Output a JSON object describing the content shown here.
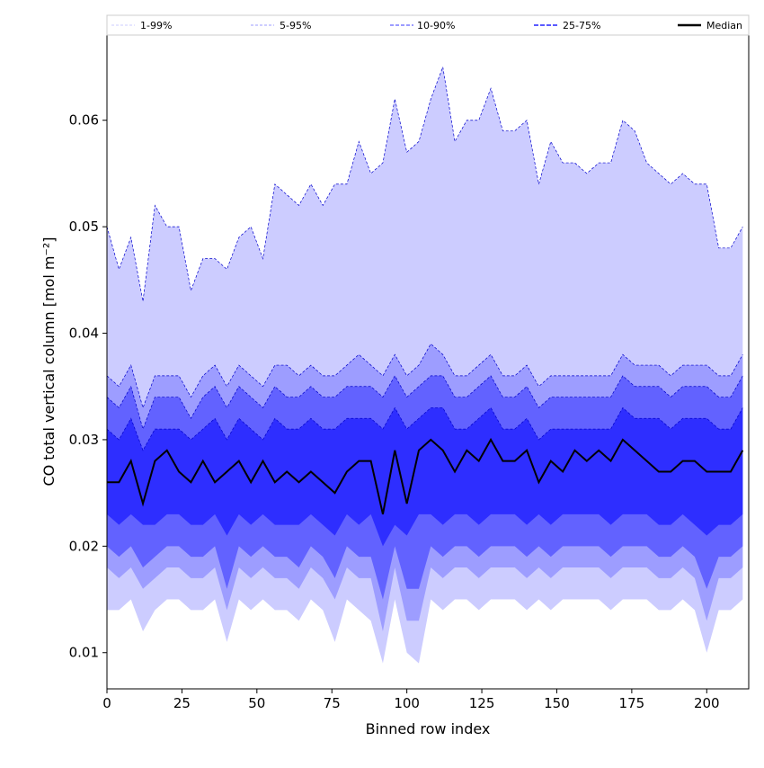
{
  "chart_data": {
    "type": "area",
    "title": "",
    "xlabel": "Binned row index",
    "ylabel": "CO total vertical column [mol m⁻²]",
    "xlim": [
      0,
      214
    ],
    "ylim": [
      0.0066,
      0.068
    ],
    "xticks": [
      0,
      25,
      50,
      75,
      100,
      125,
      150,
      175,
      200
    ],
    "yticks": [
      0.01,
      0.02,
      0.03,
      0.04,
      0.05,
      0.06
    ],
    "ytick_labels": [
      "0.01",
      "0.02",
      "0.03",
      "0.04",
      "0.05",
      "0.06"
    ],
    "legend_placement": "top (above plot)",
    "legend": [
      "1-99%",
      "5-95%",
      "10-90%",
      "25-75%",
      "Median"
    ],
    "colors": {
      "band_1_99": "#ccccff",
      "band_5_95": "#9d9dff",
      "band_10_90": "#6262ff",
      "band_25_75": "#2e2eff",
      "median": "#000000",
      "edge": "#0000cc"
    },
    "x": [
      0,
      4,
      8,
      12,
      16,
      20,
      24,
      28,
      32,
      36,
      40,
      44,
      48,
      52,
      56,
      60,
      64,
      68,
      72,
      76,
      80,
      84,
      88,
      92,
      96,
      100,
      104,
      108,
      112,
      116,
      120,
      124,
      128,
      132,
      136,
      140,
      144,
      148,
      152,
      156,
      160,
      164,
      168,
      172,
      176,
      180,
      184,
      188,
      192,
      196,
      200,
      204,
      208,
      212
    ],
    "series": [
      {
        "name": "p99",
        "values": [
          0.05,
          0.046,
          0.049,
          0.043,
          0.052,
          0.05,
          0.05,
          0.044,
          0.047,
          0.047,
          0.046,
          0.049,
          0.05,
          0.047,
          0.054,
          0.053,
          0.052,
          0.054,
          0.052,
          0.054,
          0.054,
          0.058,
          0.055,
          0.056,
          0.062,
          0.057,
          0.058,
          0.062,
          0.065,
          0.058,
          0.06,
          0.06,
          0.063,
          0.059,
          0.059,
          0.06,
          0.054,
          0.058,
          0.056,
          0.056,
          0.055,
          0.056,
          0.056,
          0.06,
          0.059,
          0.056,
          0.055,
          0.054,
          0.055,
          0.054,
          0.054,
          0.048,
          0.048,
          0.05
        ]
      },
      {
        "name": "p95",
        "values": [
          0.036,
          0.035,
          0.037,
          0.033,
          0.036,
          0.036,
          0.036,
          0.034,
          0.036,
          0.037,
          0.035,
          0.037,
          0.036,
          0.035,
          0.037,
          0.037,
          0.036,
          0.037,
          0.036,
          0.036,
          0.037,
          0.038,
          0.037,
          0.036,
          0.038,
          0.036,
          0.037,
          0.039,
          0.038,
          0.036,
          0.036,
          0.037,
          0.038,
          0.036,
          0.036,
          0.037,
          0.035,
          0.036,
          0.036,
          0.036,
          0.036,
          0.036,
          0.036,
          0.038,
          0.037,
          0.037,
          0.037,
          0.036,
          0.037,
          0.037,
          0.037,
          0.036,
          0.036,
          0.038
        ]
      },
      {
        "name": "p90",
        "values": [
          0.034,
          0.033,
          0.035,
          0.031,
          0.034,
          0.034,
          0.034,
          0.032,
          0.034,
          0.035,
          0.033,
          0.035,
          0.034,
          0.033,
          0.035,
          0.034,
          0.034,
          0.035,
          0.034,
          0.034,
          0.035,
          0.035,
          0.035,
          0.034,
          0.036,
          0.034,
          0.035,
          0.036,
          0.036,
          0.034,
          0.034,
          0.035,
          0.036,
          0.034,
          0.034,
          0.035,
          0.033,
          0.034,
          0.034,
          0.034,
          0.034,
          0.034,
          0.034,
          0.036,
          0.035,
          0.035,
          0.035,
          0.034,
          0.035,
          0.035,
          0.035,
          0.034,
          0.034,
          0.036
        ]
      },
      {
        "name": "p75",
        "values": [
          0.031,
          0.03,
          0.032,
          0.029,
          0.031,
          0.031,
          0.031,
          0.03,
          0.031,
          0.032,
          0.03,
          0.032,
          0.031,
          0.03,
          0.032,
          0.031,
          0.031,
          0.032,
          0.031,
          0.031,
          0.032,
          0.032,
          0.032,
          0.031,
          0.033,
          0.031,
          0.032,
          0.033,
          0.033,
          0.031,
          0.031,
          0.032,
          0.033,
          0.031,
          0.031,
          0.032,
          0.03,
          0.031,
          0.031,
          0.031,
          0.031,
          0.031,
          0.031,
          0.033,
          0.032,
          0.032,
          0.032,
          0.031,
          0.032,
          0.032,
          0.032,
          0.031,
          0.031,
          0.033
        ]
      },
      {
        "name": "Median",
        "values": [
          0.026,
          0.026,
          0.028,
          0.024,
          0.028,
          0.029,
          0.027,
          0.026,
          0.028,
          0.026,
          0.027,
          0.028,
          0.026,
          0.028,
          0.026,
          0.027,
          0.026,
          0.027,
          0.026,
          0.025,
          0.027,
          0.028,
          0.028,
          0.023,
          0.029,
          0.024,
          0.029,
          0.03,
          0.029,
          0.027,
          0.029,
          0.028,
          0.03,
          0.028,
          0.028,
          0.029,
          0.026,
          0.028,
          0.027,
          0.029,
          0.028,
          0.029,
          0.028,
          0.03,
          0.029,
          0.028,
          0.027,
          0.027,
          0.028,
          0.028,
          0.027,
          0.027,
          0.027,
          0.029
        ]
      },
      {
        "name": "p25",
        "values": [
          0.023,
          0.022,
          0.023,
          0.022,
          0.022,
          0.023,
          0.023,
          0.022,
          0.022,
          0.023,
          0.021,
          0.023,
          0.022,
          0.023,
          0.022,
          0.022,
          0.022,
          0.023,
          0.022,
          0.021,
          0.023,
          0.022,
          0.023,
          0.02,
          0.022,
          0.021,
          0.023,
          0.023,
          0.022,
          0.023,
          0.023,
          0.022,
          0.023,
          0.023,
          0.023,
          0.022,
          0.023,
          0.022,
          0.023,
          0.023,
          0.023,
          0.023,
          0.022,
          0.023,
          0.023,
          0.023,
          0.022,
          0.022,
          0.023,
          0.022,
          0.021,
          0.022,
          0.022,
          0.023
        ]
      },
      {
        "name": "p10",
        "values": [
          0.02,
          0.019,
          0.02,
          0.018,
          0.019,
          0.02,
          0.02,
          0.019,
          0.019,
          0.02,
          0.016,
          0.02,
          0.019,
          0.02,
          0.019,
          0.019,
          0.018,
          0.02,
          0.019,
          0.017,
          0.02,
          0.019,
          0.019,
          0.015,
          0.02,
          0.016,
          0.016,
          0.02,
          0.019,
          0.02,
          0.02,
          0.019,
          0.02,
          0.02,
          0.02,
          0.019,
          0.02,
          0.019,
          0.02,
          0.02,
          0.02,
          0.02,
          0.019,
          0.02,
          0.02,
          0.02,
          0.019,
          0.019,
          0.02,
          0.019,
          0.016,
          0.019,
          0.019,
          0.02
        ]
      },
      {
        "name": "p5",
        "values": [
          0.018,
          0.017,
          0.018,
          0.016,
          0.017,
          0.018,
          0.018,
          0.017,
          0.017,
          0.018,
          0.014,
          0.018,
          0.017,
          0.018,
          0.017,
          0.017,
          0.016,
          0.018,
          0.017,
          0.015,
          0.018,
          0.017,
          0.017,
          0.012,
          0.018,
          0.013,
          0.013,
          0.018,
          0.017,
          0.018,
          0.018,
          0.017,
          0.018,
          0.018,
          0.018,
          0.017,
          0.018,
          0.017,
          0.018,
          0.018,
          0.018,
          0.018,
          0.017,
          0.018,
          0.018,
          0.018,
          0.017,
          0.017,
          0.018,
          0.017,
          0.013,
          0.017,
          0.017,
          0.018
        ]
      },
      {
        "name": "p1",
        "values": [
          0.014,
          0.014,
          0.015,
          0.012,
          0.014,
          0.015,
          0.015,
          0.014,
          0.014,
          0.015,
          0.011,
          0.015,
          0.014,
          0.015,
          0.014,
          0.014,
          0.013,
          0.015,
          0.014,
          0.011,
          0.015,
          0.014,
          0.013,
          0.009,
          0.015,
          0.01,
          0.009,
          0.015,
          0.014,
          0.015,
          0.015,
          0.014,
          0.015,
          0.015,
          0.015,
          0.014,
          0.015,
          0.014,
          0.015,
          0.015,
          0.015,
          0.015,
          0.014,
          0.015,
          0.015,
          0.015,
          0.014,
          0.014,
          0.015,
          0.014,
          0.01,
          0.014,
          0.014,
          0.015
        ]
      }
    ]
  }
}
